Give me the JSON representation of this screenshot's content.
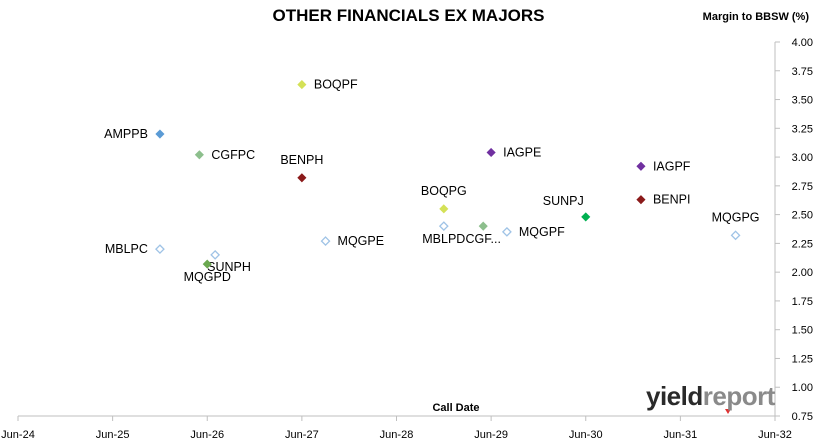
{
  "chart_data": {
    "type": "scatter",
    "title": "OTHER FINANCIALS EX MAJORS",
    "ylabel": "Margin to BBSW (%)",
    "xlabel": "Call Date",
    "x_ticks": [
      "Jun-24",
      "Jun-25",
      "Jun-26",
      "Jun-27",
      "Jun-28",
      "Jun-29",
      "Jun-30",
      "Jun-31",
      "Jun-32"
    ],
    "ylim": [
      0.75,
      4.0
    ],
    "y_ticks": [
      "0.75",
      "1.00",
      "1.25",
      "1.50",
      "1.75",
      "2.00",
      "2.25",
      "2.50",
      "2.75",
      "3.00",
      "3.25",
      "3.50",
      "3.75",
      "4.00"
    ],
    "grid": false,
    "points": [
      {
        "label": "AMPPB",
        "x": "2025-12",
        "y": 3.2,
        "color": "#5b9bd5",
        "filled": true,
        "label_pos": "left"
      },
      {
        "label": "CGFPC",
        "x": "2026-05",
        "y": 3.02,
        "color": "#8dbf8d",
        "filled": true,
        "label_pos": "right"
      },
      {
        "label": "BOQPF",
        "x": "2027-06",
        "y": 3.63,
        "color": "#d4e157",
        "filled": true,
        "label_pos": "right"
      },
      {
        "label": "BENPH",
        "x": "2027-06",
        "y": 2.82,
        "color": "#8b1a1a",
        "filled": true,
        "label_pos": "above"
      },
      {
        "label": "MBLPC",
        "x": "2025-12",
        "y": 2.2,
        "color": "#9fc3e6",
        "filled": false,
        "label_pos": "left"
      },
      {
        "label": "SUNPH",
        "x": "2026-07",
        "y": 2.15,
        "color": "#9fc3e6",
        "filled": false,
        "label_pos": "below-right"
      },
      {
        "label": "MQGPD",
        "x": "2026-06",
        "y": 2.07,
        "color": "#6aa84f",
        "filled": true,
        "label_pos": "below"
      },
      {
        "label": "MQGPE",
        "x": "2027-09",
        "y": 2.27,
        "color": "#9fc3e6",
        "filled": false,
        "label_pos": "right"
      },
      {
        "label": "BOQPG",
        "x": "2028-12",
        "y": 2.55,
        "color": "#d4e157",
        "filled": true,
        "label_pos": "above"
      },
      {
        "label": "MBLPD",
        "x": "2028-12",
        "y": 2.4,
        "color": "#9fc3e6",
        "filled": false,
        "label_pos": "below"
      },
      {
        "label": "CGF...",
        "x": "2029-05",
        "y": 2.4,
        "color": "#8dbf8d",
        "filled": true,
        "label_pos": "below"
      },
      {
        "label": "MQGPF",
        "x": "2029-08",
        "y": 2.35,
        "color": "#9fc3e6",
        "filled": false,
        "label_pos": "right"
      },
      {
        "label": "IAGPE",
        "x": "2029-06",
        "y": 3.04,
        "color": "#7030a0",
        "filled": true,
        "label_pos": "right"
      },
      {
        "label": "SUNPJ",
        "x": "2030-06",
        "y": 2.48,
        "color": "#00b050",
        "filled": true,
        "label_pos": "above-left"
      },
      {
        "label": "IAGPF",
        "x": "2031-01",
        "y": 2.92,
        "color": "#7030a0",
        "filled": true,
        "label_pos": "right"
      },
      {
        "label": "BENPI",
        "x": "2031-01",
        "y": 2.63,
        "color": "#8b1a1a",
        "filled": true,
        "label_pos": "right"
      },
      {
        "label": "MQGPG",
        "x": "2032-01",
        "y": 2.32,
        "color": "#9fc3e6",
        "filled": false,
        "label_pos": "above"
      }
    ]
  },
  "branding": {
    "logo_part1": "yield",
    "logo_part2": "report"
  }
}
